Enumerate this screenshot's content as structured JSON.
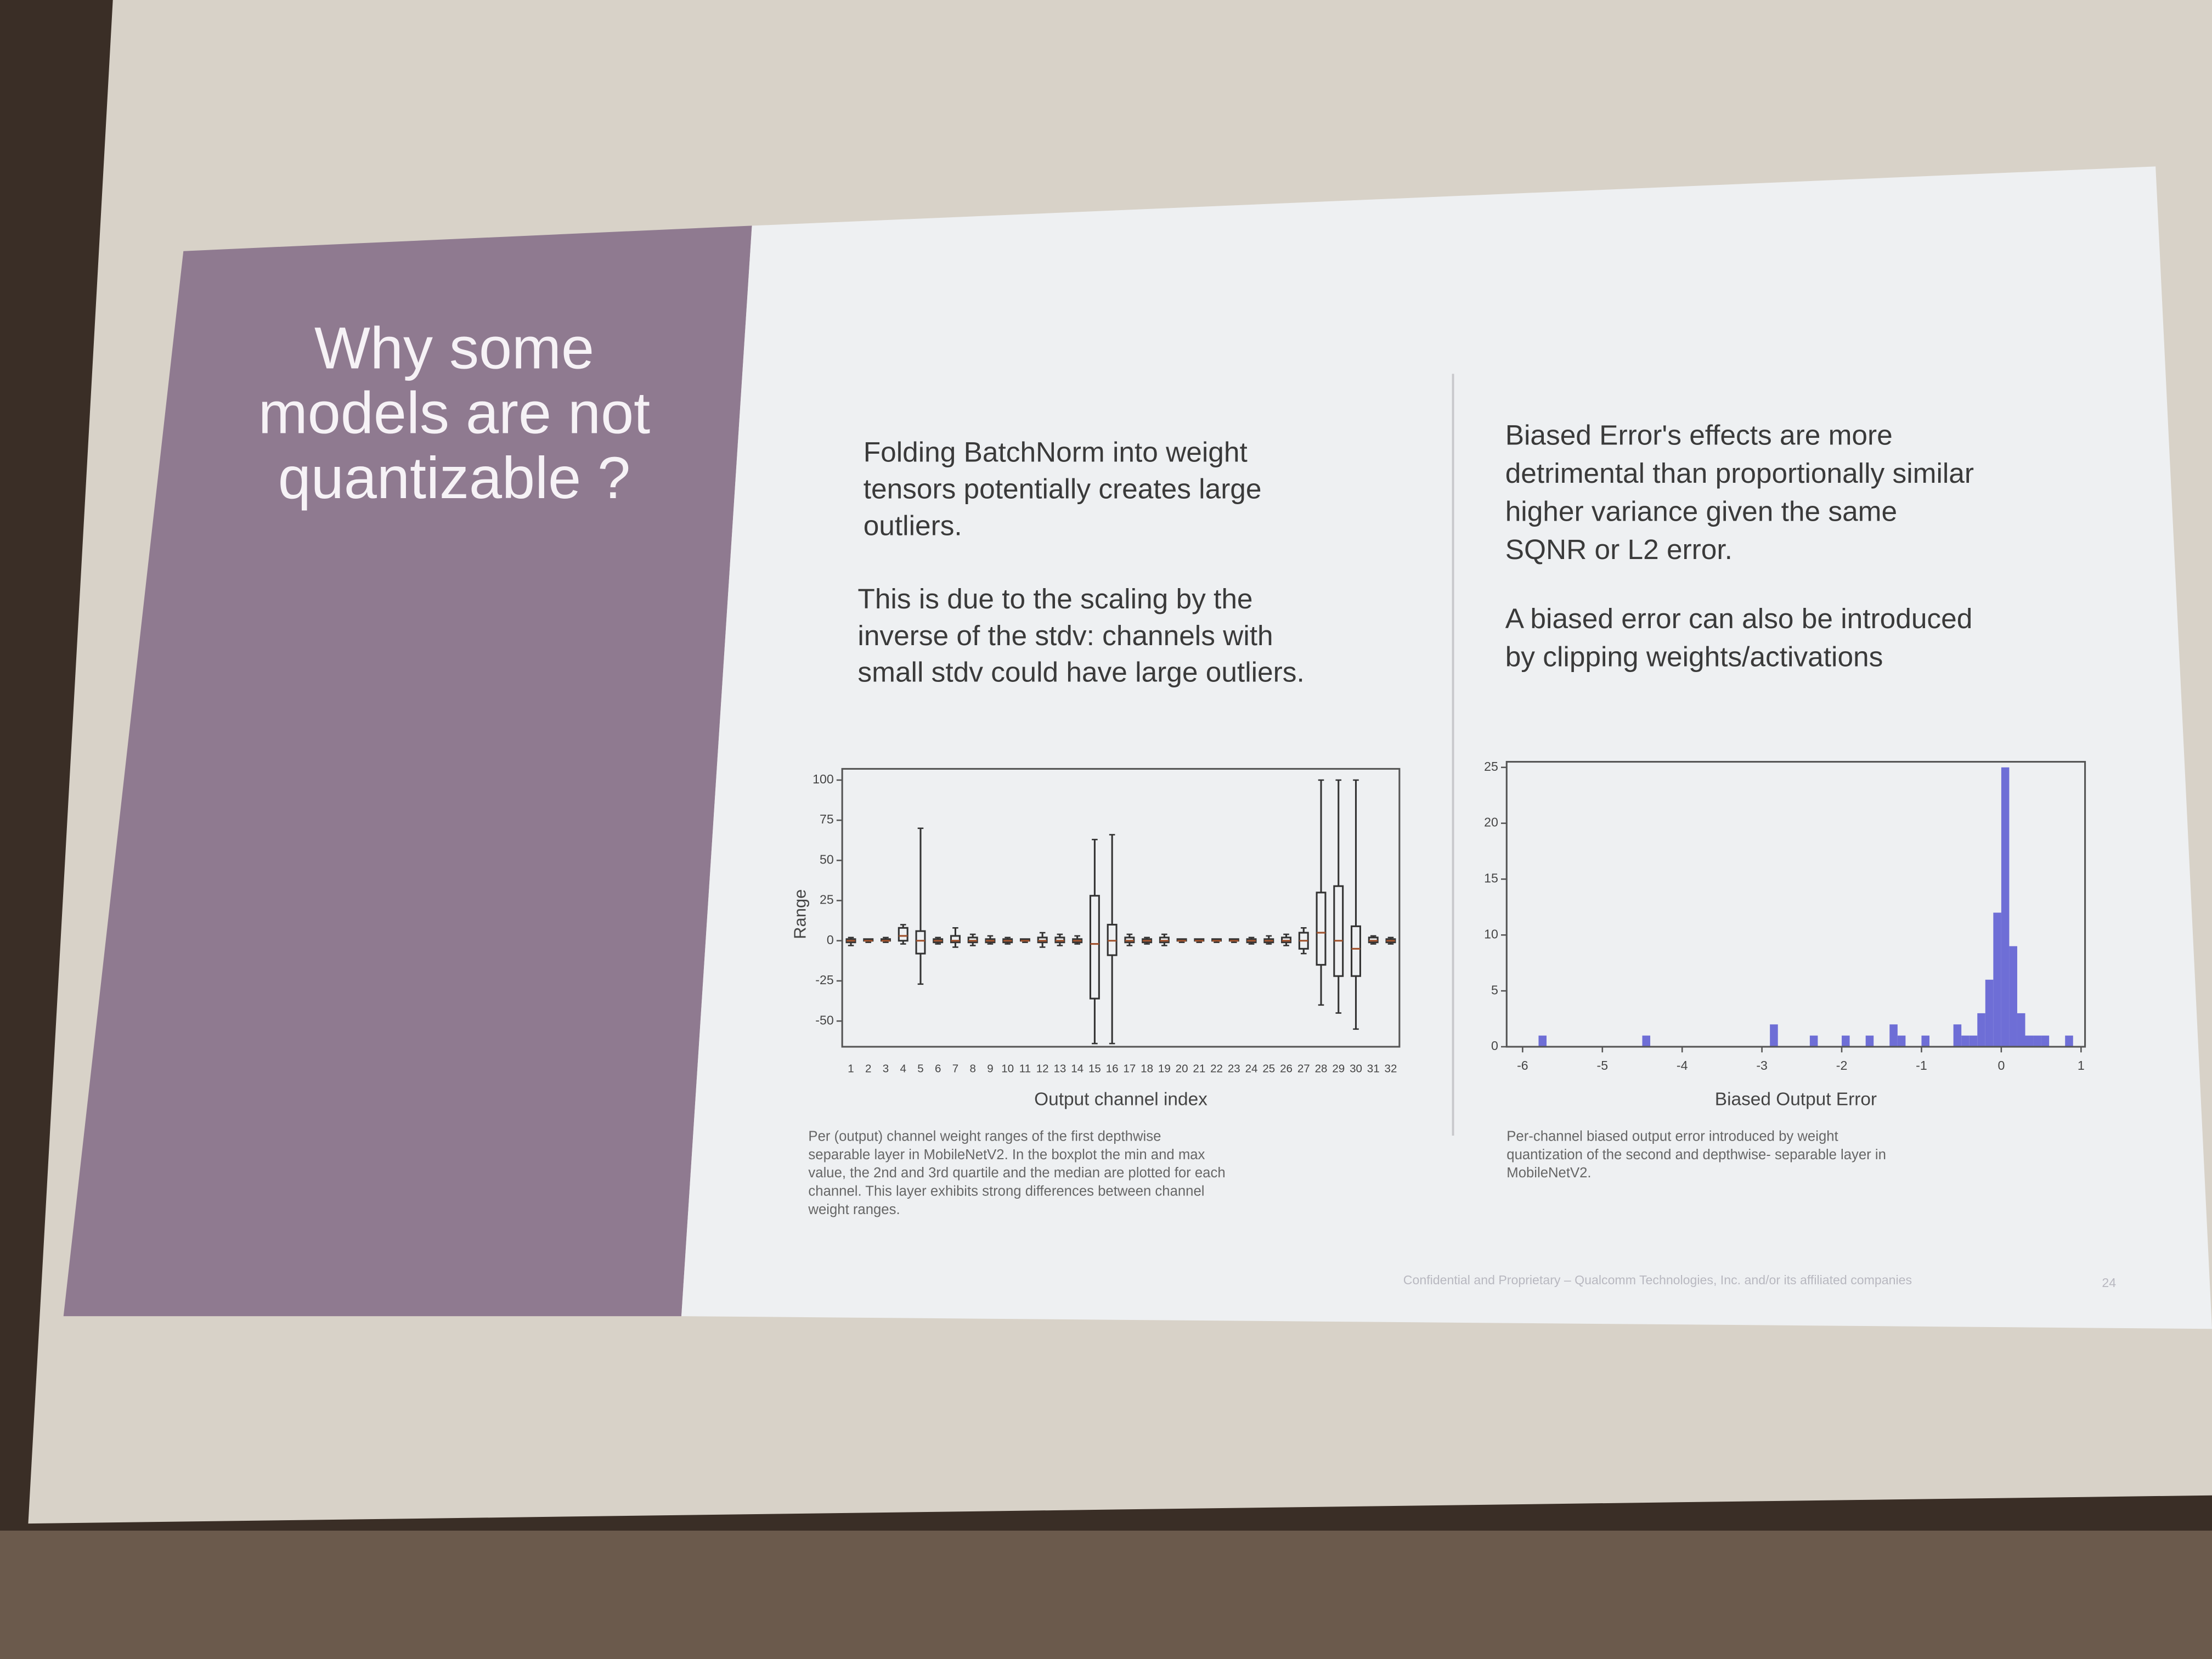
{
  "slide": {
    "title": [
      "Why some",
      "models are not",
      "quantizable ?"
    ],
    "left_text": {
      "paragraph_1": [
        "Folding BatchNorm into weight",
        "tensors potentially creates large",
        "outliers."
      ],
      "paragraph_2": [
        "This is due to the scaling by the",
        "inverse of the stdv: channels with",
        "small stdv could have large outliers."
      ]
    },
    "right_text": {
      "paragraph_1": [
        "Biased Error's effects are more",
        "detrimental than proportionally similar",
        "higher variance given the same",
        "SQNR or L2 error."
      ],
      "paragraph_2": [
        "A biased error can also be introduced",
        "by clipping weights/activations"
      ]
    },
    "footer": "Confidential and Proprietary – Qualcomm Technologies, Inc. and/or its affiliated companies",
    "page_number": "24"
  },
  "chart_data": [
    {
      "type": "box",
      "xlabel": "Output channel index",
      "ylabel": "Range",
      "color": "#333333",
      "categories": [
        "1",
        "2",
        "3",
        "4",
        "5",
        "6",
        "7",
        "8",
        "9",
        "10",
        "11",
        "12",
        "13",
        "14",
        "15",
        "16",
        "17",
        "18",
        "19",
        "20",
        "21",
        "22",
        "23",
        "24",
        "25",
        "26",
        "27",
        "28",
        "29",
        "30",
        "31",
        "32"
      ],
      "boxes": [
        {
          "min": -3,
          "q1": -1,
          "median": 0,
          "q3": 1,
          "max": 2
        },
        {
          "min": -1,
          "q1": 0,
          "median": 0,
          "q3": 1,
          "max": 1
        },
        {
          "min": -1,
          "q1": 0,
          "median": 0,
          "q3": 1,
          "max": 2
        },
        {
          "min": -2,
          "q1": 0,
          "median": 3,
          "q3": 8,
          "max": 10
        },
        {
          "min": -27,
          "q1": -8,
          "median": 0,
          "q3": 6,
          "max": 70
        },
        {
          "min": -2,
          "q1": -1,
          "median": 0,
          "q3": 1,
          "max": 2
        },
        {
          "min": -4,
          "q1": -1,
          "median": 0,
          "q3": 3,
          "max": 8
        },
        {
          "min": -3,
          "q1": -1,
          "median": 0,
          "q3": 2,
          "max": 4
        },
        {
          "min": -2,
          "q1": -1,
          "median": 0,
          "q3": 1,
          "max": 3
        },
        {
          "min": -2,
          "q1": -1,
          "median": 0,
          "q3": 1,
          "max": 2
        },
        {
          "min": -1,
          "q1": 0,
          "median": 0,
          "q3": 1,
          "max": 1
        },
        {
          "min": -4,
          "q1": -1,
          "median": 0,
          "q3": 2,
          "max": 5
        },
        {
          "min": -3,
          "q1": -1,
          "median": 0,
          "q3": 2,
          "max": 4
        },
        {
          "min": -2,
          "q1": -1,
          "median": 0,
          "q3": 1,
          "max": 3
        },
        {
          "min": -64,
          "q1": -36,
          "median": -2,
          "q3": 28,
          "max": 63
        },
        {
          "min": -64,
          "q1": -9,
          "median": 0,
          "q3": 10,
          "max": 66
        },
        {
          "min": -3,
          "q1": -1,
          "median": 0,
          "q3": 2,
          "max": 4
        },
        {
          "min": -2,
          "q1": -1,
          "median": 0,
          "q3": 1,
          "max": 2
        },
        {
          "min": -3,
          "q1": -1,
          "median": 0,
          "q3": 2,
          "max": 4
        },
        {
          "min": -1,
          "q1": 0,
          "median": 0,
          "q3": 1,
          "max": 1
        },
        {
          "min": -1,
          "q1": 0,
          "median": 0,
          "q3": 1,
          "max": 1
        },
        {
          "min": -1,
          "q1": 0,
          "median": 0,
          "q3": 1,
          "max": 1
        },
        {
          "min": -1,
          "q1": 0,
          "median": 0,
          "q3": 1,
          "max": 1
        },
        {
          "min": -2,
          "q1": -1,
          "median": 0,
          "q3": 1,
          "max": 2
        },
        {
          "min": -2,
          "q1": -1,
          "median": 0,
          "q3": 1,
          "max": 3
        },
        {
          "min": -3,
          "q1": -1,
          "median": 0,
          "q3": 2,
          "max": 4
        },
        {
          "min": -8,
          "q1": -5,
          "median": 0,
          "q3": 5,
          "max": 8
        },
        {
          "min": -40,
          "q1": -15,
          "median": 5,
          "q3": 30,
          "max": 100
        },
        {
          "min": -45,
          "q1": -22,
          "median": 0,
          "q3": 34,
          "max": 100
        },
        {
          "min": -55,
          "q1": -22,
          "median": -5,
          "q3": 9,
          "max": 100
        },
        {
          "min": -2,
          "q1": -1,
          "median": 0,
          "q3": 2,
          "max": 3
        },
        {
          "min": -2,
          "q1": -1,
          "median": 0,
          "q3": 1,
          "max": 2
        }
      ],
      "ylim": [
        -66,
        107
      ],
      "yticks": [
        -50,
        -25,
        0,
        25,
        50,
        75,
        100
      ],
      "caption": [
        "Per (output) channel weight ranges of the first depthwise",
        "separable layer in MobileNetV2. In the boxplot the min and max",
        "value, the 2nd and 3rd quartile and the median are plotted for each",
        "channel. This layer exhibits strong differences between channel",
        "weight ranges."
      ]
    },
    {
      "type": "histogram",
      "xlabel": "Biased Output Error",
      "color": "#6e6ed6",
      "bins": [
        -6,
        -5.9,
        -5.8,
        -5.7,
        -5.6,
        -5.5,
        -5.4,
        -5.3,
        -5.2,
        -5.1,
        -5,
        -4.9,
        -4.8,
        -4.7,
        -4.6,
        -4.5,
        -4.4,
        -4.3,
        -4.2,
        -4.1,
        -4,
        -3.9,
        -3.8,
        -3.7,
        -3.6,
        -3.5,
        -3.4,
        -3.3,
        -3.2,
        -3.1,
        -3,
        -2.9,
        -2.8,
        -2.7,
        -2.6,
        -2.5,
        -2.4,
        -2.3,
        -2.2,
        -2.1,
        -2,
        -1.9,
        -1.8,
        -1.7,
        -1.6,
        -1.5,
        -1.4,
        -1.3,
        -1.2,
        -1.1,
        -1,
        -0.9,
        -0.8,
        -0.7,
        -0.6,
        -0.5,
        -0.4,
        -0.3,
        -0.2,
        -0.1,
        0,
        0.1,
        0.2,
        0.3,
        0.4,
        0.5,
        0.6,
        0.7,
        0.8,
        0.9,
        1
      ],
      "values": [
        0,
        0,
        1,
        0,
        0,
        0,
        0,
        0,
        0,
        0,
        0,
        0,
        0,
        0,
        0,
        1,
        0,
        0,
        0,
        0,
        0,
        0,
        0,
        0,
        0,
        0,
        0,
        0,
        0,
        0,
        0,
        2,
        0,
        0,
        0,
        0,
        1,
        0,
        0,
        0,
        1,
        0,
        0,
        1,
        0,
        0,
        2,
        1,
        0,
        0,
        1,
        0,
        0,
        0,
        2,
        1,
        1,
        3,
        6,
        12,
        25,
        9,
        3,
        1,
        1,
        1,
        0,
        0,
        1,
        0
      ],
      "xlim": [
        -6.2,
        1.05
      ],
      "xticks": [
        -6,
        -5,
        -4,
        -3,
        -2,
        -1,
        0,
        1
      ],
      "ylim": [
        0,
        25.5
      ],
      "yticks": [
        0,
        5,
        10,
        15,
        20,
        25
      ],
      "caption": [
        "Per-channel biased output error introduced by weight",
        "quantization of the second and depthwise- separable layer in",
        "MobileNetV2."
      ]
    }
  ]
}
